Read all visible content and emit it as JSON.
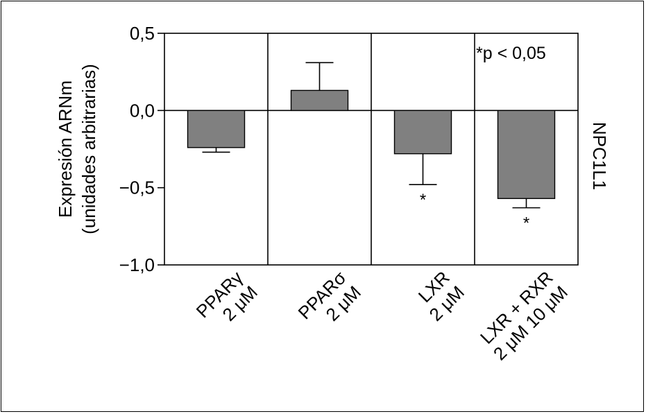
{
  "chart_data": {
    "type": "bar",
    "title": "",
    "ylabel_lines": [
      "Expresión ARNm",
      "(unidades arbitrarias)"
    ],
    "right_label": "NPC1L1",
    "annotation": "*p < 0,05",
    "ylim": [
      -1.0,
      0.5
    ],
    "yticks": [
      0.5,
      0.0,
      -0.5,
      -1.0
    ],
    "ytick_labels": [
      "0,5",
      "0,0",
      "−0,5",
      "−1,0"
    ],
    "categories": [
      {
        "line1": "PPARγ",
        "line2": "2 μM"
      },
      {
        "line1": "PPARσ",
        "line2": "2 μM"
      },
      {
        "line1": "LXR",
        "line2": "2 μM"
      },
      {
        "line1": "LXR + RXR",
        "line2": "2 μM  10 μM"
      }
    ],
    "values": [
      -0.24,
      0.13,
      -0.28,
      -0.57
    ],
    "errors": [
      0.03,
      0.18,
      0.2,
      0.06
    ],
    "significant": [
      false,
      false,
      true,
      true
    ],
    "significance_marker": "*",
    "bar_color": "#808080",
    "grid": false
  }
}
